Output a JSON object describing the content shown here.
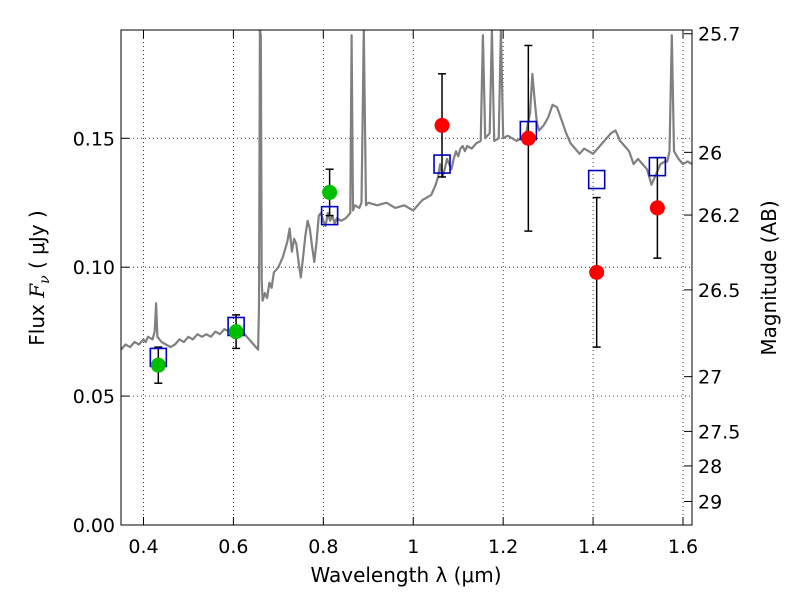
{
  "chart_data": {
    "type": "scatter",
    "xlabel": "Wavelength  λ (μm)",
    "ylabel_prefix": "Flux  ",
    "ylabel_italic": "F",
    "ylabel_sub": "ν",
    "ylabel_suffix": "  ( μJy )",
    "y2label": "Magnitude (AB)",
    "xlim": [
      0.35,
      1.62
    ],
    "ylim": [
      0.0,
      0.192
    ],
    "grid": true,
    "x_ticks": [
      {
        "value": 0.4,
        "label": "0.4"
      },
      {
        "value": 0.6,
        "label": "0.6"
      },
      {
        "value": 0.8,
        "label": "0.8"
      },
      {
        "value": 1.0,
        "label": "1"
      },
      {
        "value": 1.2,
        "label": "1.2"
      },
      {
        "value": 1.4,
        "label": "1.4"
      },
      {
        "value": 1.6,
        "label": "1.6"
      }
    ],
    "y_ticks": [
      {
        "value": 0.0,
        "label": "0.00"
      },
      {
        "value": 0.05,
        "label": "0.05"
      },
      {
        "value": 0.1,
        "label": "0.10"
      },
      {
        "value": 0.15,
        "label": "0.15"
      }
    ],
    "y2_ticks": [
      {
        "value": 25.7,
        "label": "25.7"
      },
      {
        "value": 26.0,
        "label": "26"
      },
      {
        "value": 26.2,
        "label": "26.2"
      },
      {
        "value": 26.5,
        "label": "26.5"
      },
      {
        "value": 27.0,
        "label": "27"
      },
      {
        "value": 27.5,
        "label": "27.5"
      },
      {
        "value": 28.0,
        "label": "28"
      },
      {
        "value": 29.0,
        "label": "29"
      }
    ],
    "series": [
      {
        "style": "line",
        "color": "#808080",
        "points": [
          [
            0.35,
            0.068
          ],
          [
            0.36,
            0.07
          ],
          [
            0.37,
            0.069
          ],
          [
            0.38,
            0.071
          ],
          [
            0.39,
            0.07
          ],
          [
            0.4,
            0.072
          ],
          [
            0.405,
            0.071
          ],
          [
            0.41,
            0.073
          ],
          [
            0.42,
            0.072
          ],
          [
            0.425,
            0.075
          ],
          [
            0.428,
            0.086
          ],
          [
            0.431,
            0.073
          ],
          [
            0.44,
            0.071
          ],
          [
            0.45,
            0.07
          ],
          [
            0.46,
            0.069
          ],
          [
            0.47,
            0.07
          ],
          [
            0.48,
            0.072
          ],
          [
            0.49,
            0.071
          ],
          [
            0.5,
            0.073
          ],
          [
            0.51,
            0.072
          ],
          [
            0.52,
            0.074
          ],
          [
            0.53,
            0.073
          ],
          [
            0.54,
            0.074
          ],
          [
            0.55,
            0.073
          ],
          [
            0.56,
            0.075
          ],
          [
            0.57,
            0.074
          ],
          [
            0.58,
            0.076
          ],
          [
            0.59,
            0.075
          ],
          [
            0.6,
            0.077
          ],
          [
            0.61,
            0.076
          ],
          [
            0.62,
            0.075
          ],
          [
            0.63,
            0.073
          ],
          [
            0.64,
            0.071
          ],
          [
            0.65,
            0.069
          ],
          [
            0.655,
            0.068
          ],
          [
            0.657,
            0.085
          ],
          [
            0.659,
            0.192
          ],
          [
            0.661,
            0.19
          ],
          [
            0.663,
            0.095
          ],
          [
            0.665,
            0.087
          ],
          [
            0.67,
            0.09
          ],
          [
            0.675,
            0.088
          ],
          [
            0.68,
            0.094
          ],
          [
            0.685,
            0.092
          ],
          [
            0.69,
            0.098
          ],
          [
            0.7,
            0.1
          ],
          [
            0.71,
            0.104
          ],
          [
            0.72,
            0.11
          ],
          [
            0.725,
            0.115
          ],
          [
            0.73,
            0.106
          ],
          [
            0.735,
            0.111
          ],
          [
            0.74,
            0.109
          ],
          [
            0.745,
            0.102
          ],
          [
            0.75,
            0.096
          ],
          [
            0.755,
            0.104
          ],
          [
            0.76,
            0.112
          ],
          [
            0.765,
            0.118
          ],
          [
            0.77,
            0.115
          ],
          [
            0.775,
            0.108
          ],
          [
            0.78,
            0.102
          ],
          [
            0.785,
            0.11
          ],
          [
            0.79,
            0.12
          ],
          [
            0.795,
            0.121
          ],
          [
            0.8,
            0.118
          ],
          [
            0.805,
            0.116
          ],
          [
            0.81,
            0.121
          ],
          [
            0.815,
            0.118
          ],
          [
            0.82,
            0.12
          ],
          [
            0.825,
            0.117
          ],
          [
            0.83,
            0.119
          ],
          [
            0.84,
            0.118
          ],
          [
            0.85,
            0.119
          ],
          [
            0.86,
            0.121
          ],
          [
            0.863,
            0.19
          ],
          [
            0.866,
            0.122
          ],
          [
            0.87,
            0.124
          ],
          [
            0.88,
            0.123
          ],
          [
            0.885,
            0.125
          ],
          [
            0.89,
            0.192
          ],
          [
            0.895,
            0.124
          ],
          [
            0.9,
            0.125
          ],
          [
            0.92,
            0.124
          ],
          [
            0.94,
            0.125
          ],
          [
            0.96,
            0.123
          ],
          [
            0.98,
            0.124
          ],
          [
            1.0,
            0.122
          ],
          [
            1.02,
            0.126
          ],
          [
            1.04,
            0.128
          ],
          [
            1.05,
            0.132
          ],
          [
            1.055,
            0.135
          ],
          [
            1.06,
            0.14
          ],
          [
            1.065,
            0.135
          ],
          [
            1.07,
            0.138
          ],
          [
            1.075,
            0.142
          ],
          [
            1.08,
            0.14
          ],
          [
            1.085,
            0.138
          ],
          [
            1.09,
            0.142
          ],
          [
            1.095,
            0.145
          ],
          [
            1.1,
            0.143
          ],
          [
            1.105,
            0.146
          ],
          [
            1.11,
            0.147
          ],
          [
            1.115,
            0.145
          ],
          [
            1.12,
            0.147
          ],
          [
            1.13,
            0.146
          ],
          [
            1.14,
            0.148
          ],
          [
            1.15,
            0.149
          ],
          [
            1.155,
            0.19
          ],
          [
            1.16,
            0.15
          ],
          [
            1.17,
            0.152
          ],
          [
            1.175,
            0.192
          ],
          [
            1.18,
            0.149
          ],
          [
            1.19,
            0.15
          ],
          [
            1.195,
            0.192
          ],
          [
            1.2,
            0.15
          ],
          [
            1.21,
            0.151
          ],
          [
            1.22,
            0.15
          ],
          [
            1.23,
            0.149
          ],
          [
            1.24,
            0.15
          ],
          [
            1.25,
            0.151
          ],
          [
            1.26,
            0.16
          ],
          [
            1.265,
            0.175
          ],
          [
            1.27,
            0.165
          ],
          [
            1.275,
            0.156
          ],
          [
            1.28,
            0.153
          ],
          [
            1.29,
            0.155
          ],
          [
            1.3,
            0.158
          ],
          [
            1.31,
            0.163
          ],
          [
            1.32,
            0.162
          ],
          [
            1.33,
            0.157
          ],
          [
            1.34,
            0.152
          ],
          [
            1.35,
            0.148
          ],
          [
            1.36,
            0.146
          ],
          [
            1.37,
            0.144
          ],
          [
            1.38,
            0.146
          ],
          [
            1.39,
            0.145
          ],
          [
            1.4,
            0.144
          ],
          [
            1.41,
            0.146
          ],
          [
            1.42,
            0.148
          ],
          [
            1.43,
            0.15
          ],
          [
            1.44,
            0.152
          ],
          [
            1.45,
            0.153
          ],
          [
            1.46,
            0.149
          ],
          [
            1.47,
            0.147
          ],
          [
            1.48,
            0.145
          ],
          [
            1.49,
            0.14
          ],
          [
            1.5,
            0.142
          ],
          [
            1.51,
            0.14
          ],
          [
            1.52,
            0.138
          ],
          [
            1.53,
            0.132
          ],
          [
            1.54,
            0.136
          ],
          [
            1.55,
            0.14
          ],
          [
            1.56,
            0.141
          ],
          [
            1.565,
            0.141
          ],
          [
            1.57,
            0.145
          ],
          [
            1.575,
            0.19
          ],
          [
            1.58,
            0.145
          ],
          [
            1.59,
            0.142
          ],
          [
            1.6,
            0.14
          ],
          [
            1.61,
            0.141
          ],
          [
            1.62,
            0.14
          ]
        ]
      },
      {
        "style": "open-square",
        "color": "#0000bf",
        "points": [
          {
            "x": 0.433,
            "y": 0.065
          },
          {
            "x": 0.606,
            "y": 0.077
          },
          {
            "x": 0.814,
            "y": 0.12
          },
          {
            "x": 1.064,
            "y": 0.14
          },
          {
            "x": 1.256,
            "y": 0.153
          },
          {
            "x": 1.408,
            "y": 0.134
          },
          {
            "x": 1.543,
            "y": 0.139
          }
        ]
      },
      {
        "style": "filled-circle",
        "color": "#00bf00",
        "points": [
          {
            "x": 0.433,
            "y": 0.062,
            "err": 0.007
          },
          {
            "x": 0.606,
            "y": 0.075,
            "err": 0.0065
          },
          {
            "x": 0.814,
            "y": 0.129,
            "err": 0.009
          }
        ]
      },
      {
        "style": "filled-circle",
        "color": "#ff0000",
        "points": [
          {
            "x": 1.064,
            "y": 0.155,
            "err": 0.02
          },
          {
            "x": 1.256,
            "y": 0.15,
            "err": 0.036
          },
          {
            "x": 1.408,
            "y": 0.098,
            "err": 0.029
          },
          {
            "x": 1.543,
            "y": 0.123,
            "err": 0.0195
          }
        ]
      }
    ]
  }
}
